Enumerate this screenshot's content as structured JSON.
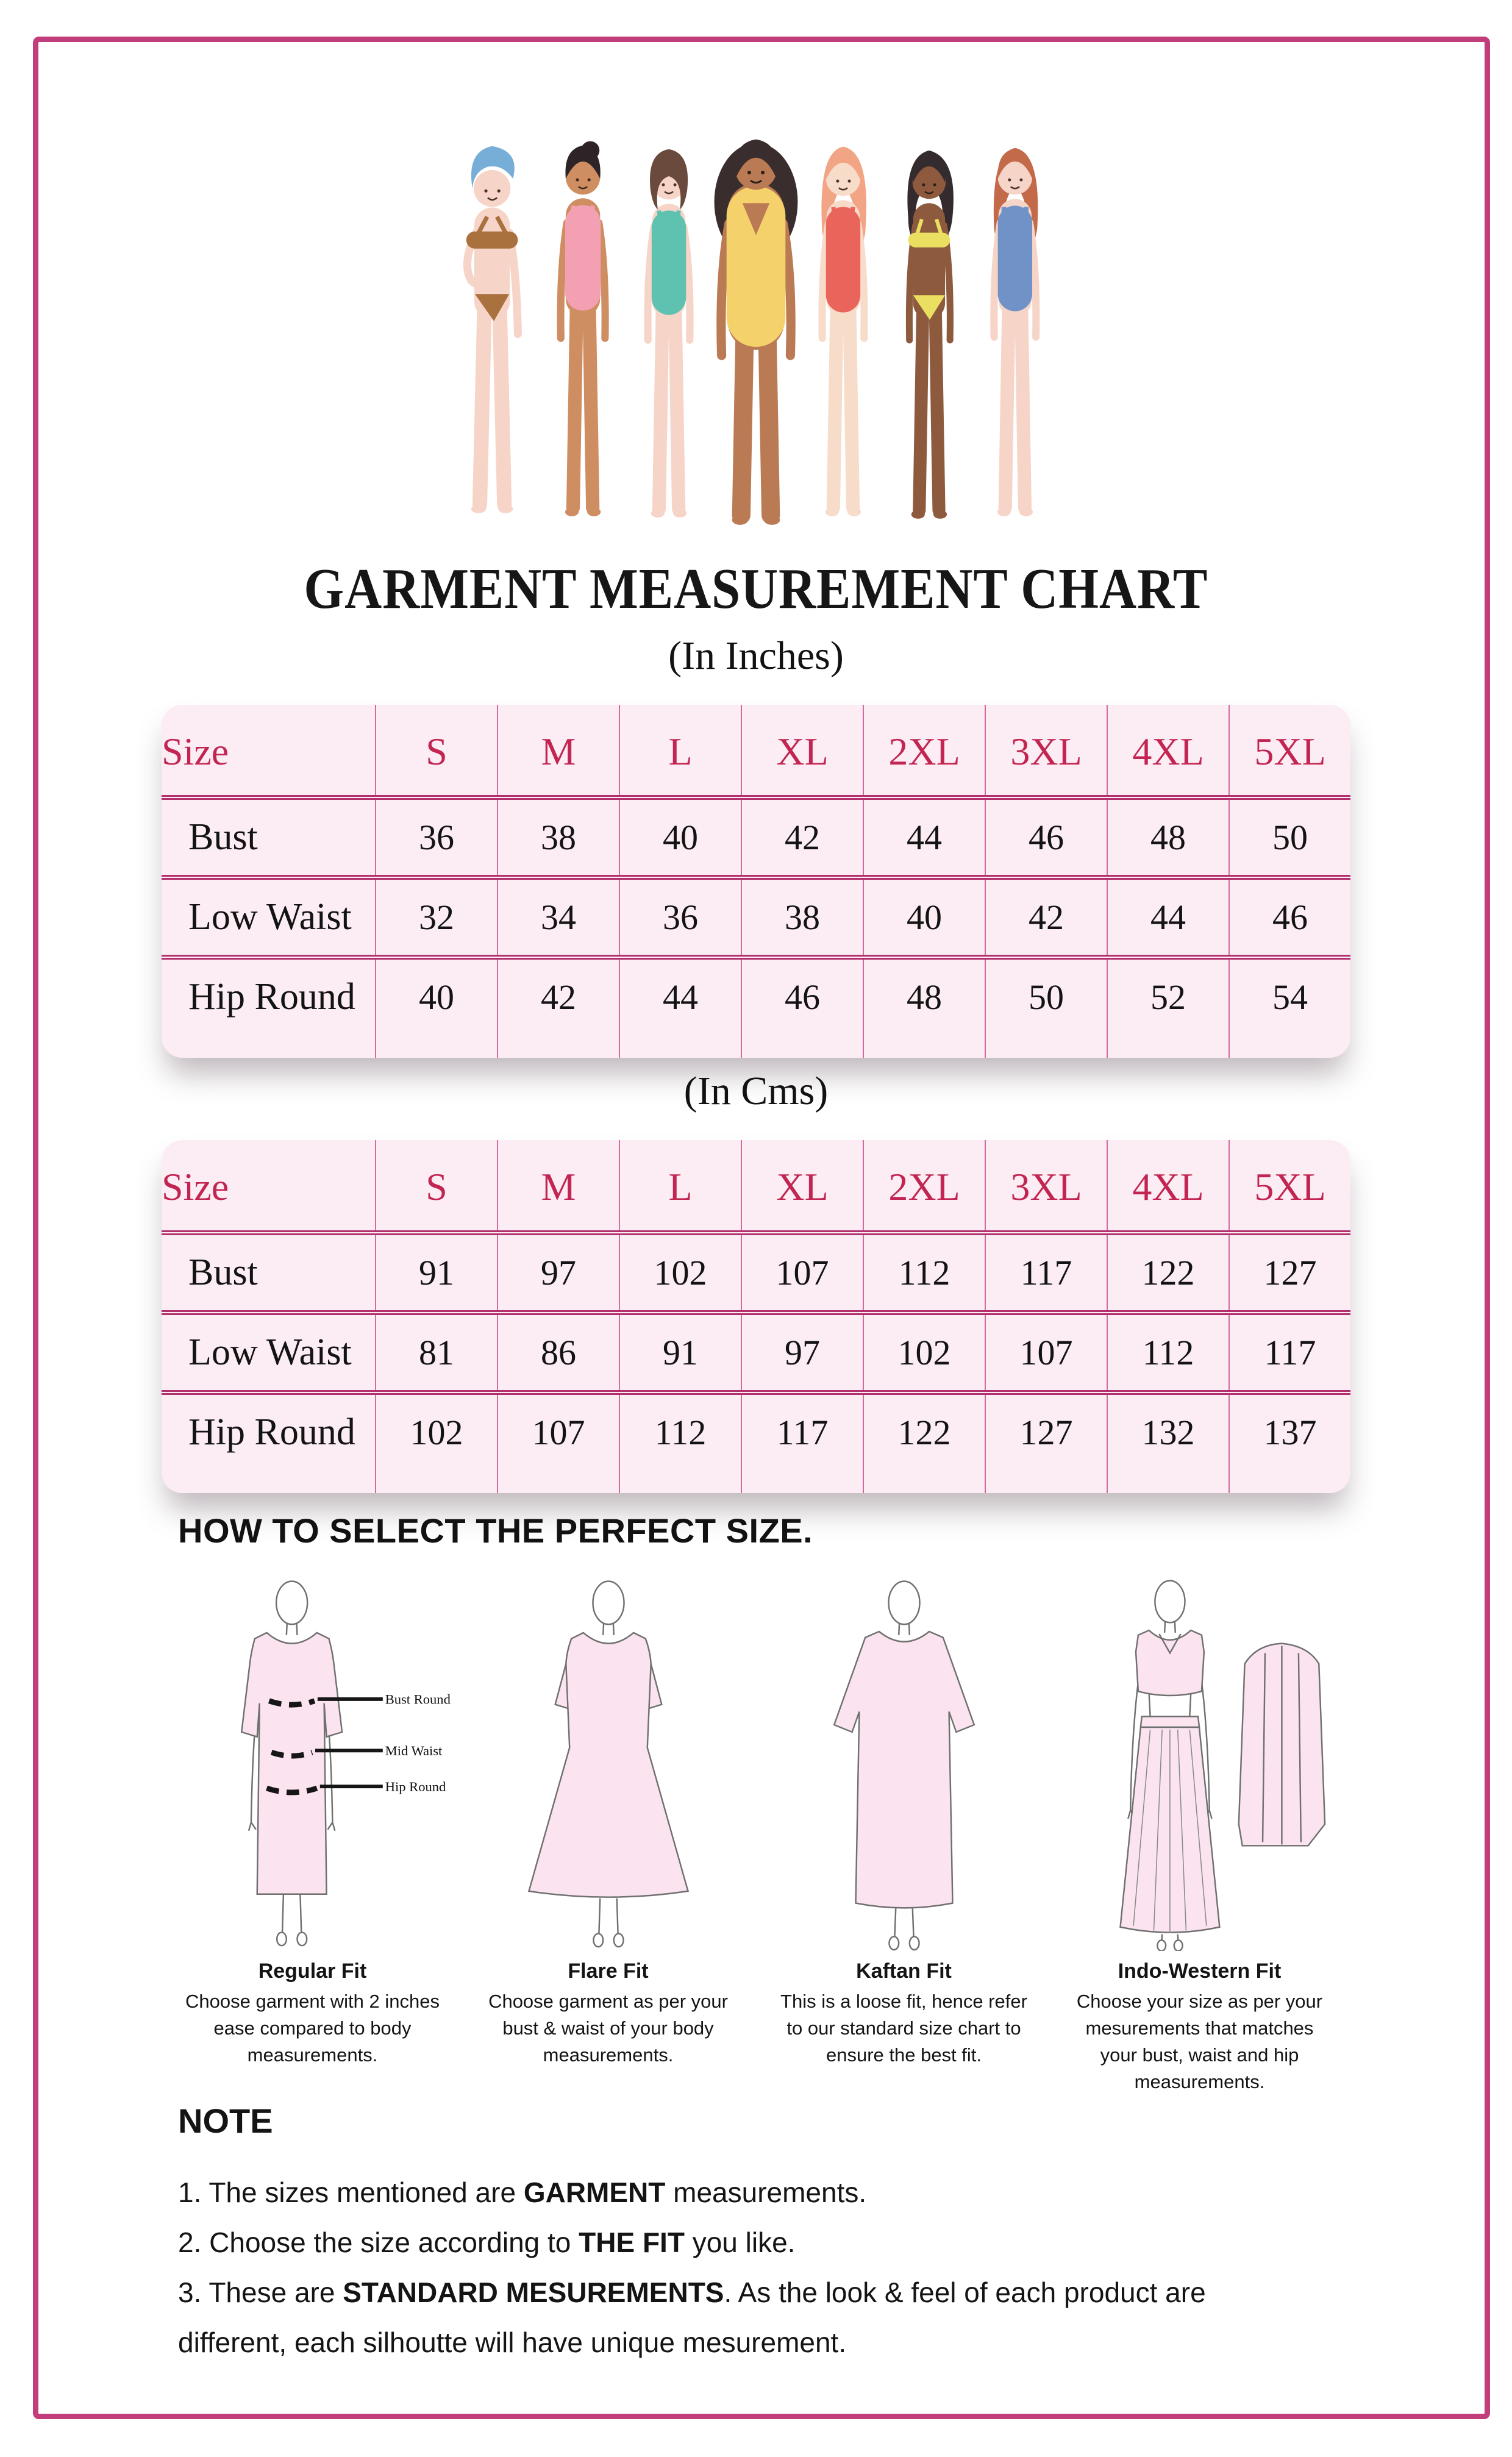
{
  "header": {
    "title": "GARMENT MEASUREMENT CHART"
  },
  "colors": {
    "frame": "#c13d7c",
    "table_background": "#fcedf4",
    "table_grid": "#d46a9f",
    "table_rule": "#b2306d",
    "header_text": "#c22552",
    "garment_pink": "#fbe4f0"
  },
  "tables": {
    "inches": {
      "subtitle": "(In Inches)",
      "header": [
        "Size",
        "S",
        "M",
        "L",
        "XL",
        "2XL",
        "3XL",
        "4XL",
        "5XL"
      ],
      "rows": [
        {
          "label": "Bust",
          "values": [
            36,
            38,
            40,
            42,
            44,
            46,
            48,
            50
          ]
        },
        {
          "label": "Low Waist",
          "values": [
            32,
            34,
            36,
            38,
            40,
            42,
            44,
            46
          ]
        },
        {
          "label": "Hip Round",
          "values": [
            40,
            42,
            44,
            46,
            48,
            50,
            52,
            54
          ]
        }
      ]
    },
    "cms": {
      "subtitle": "(In Cms)",
      "header": [
        "Size",
        "S",
        "M",
        "L",
        "XL",
        "2XL",
        "3XL",
        "4XL",
        "5XL"
      ],
      "rows": [
        {
          "label": "Bust",
          "values": [
            91,
            97,
            102,
            107,
            112,
            117,
            122,
            127
          ]
        },
        {
          "label": "Low Waist",
          "values": [
            81,
            86,
            91,
            97,
            102,
            107,
            112,
            117
          ]
        },
        {
          "label": "Hip Round",
          "values": [
            102,
            107,
            112,
            117,
            122,
            127,
            132,
            137
          ]
        }
      ]
    }
  },
  "fit_section": {
    "heading": "HOW TO SELECT THE PERFECT SIZE.",
    "measure_labels": [
      "Bust Round",
      "Mid Waist",
      "Hip Round"
    ],
    "fits": [
      {
        "title": "Regular Fit",
        "desc": "Choose garment with 2 inches ease compared to body measurements."
      },
      {
        "title": "Flare Fit",
        "desc": "Choose garment as per your bust & waist of your body measurements."
      },
      {
        "title": "Kaftan Fit",
        "desc": "This is a loose fit, hence refer to our standard size chart to ensure the best fit."
      },
      {
        "title": "Indo-Western Fit",
        "desc": "Choose your size as per your mesurements that matches your bust, waist and hip measurements."
      }
    ]
  },
  "note": {
    "heading": "NOTE",
    "items": [
      {
        "pre": "1. The sizes mentioned are ",
        "bold": "GARMENT",
        "post": " measurements."
      },
      {
        "pre": "2. Choose the size according to ",
        "bold": "THE FIT",
        "post": " you like."
      },
      {
        "pre": "3. These are ",
        "bold": "STANDARD MESUREMENTS",
        "post": ". As the look & feel of each product are different, each silhoutte will have unique mesurement."
      }
    ]
  }
}
